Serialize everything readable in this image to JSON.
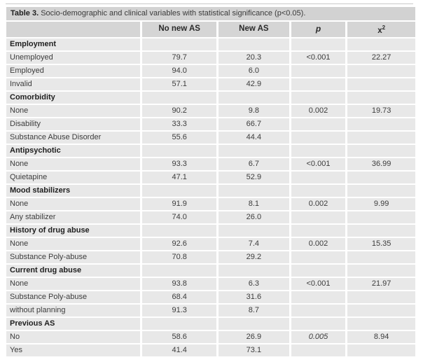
{
  "table": {
    "title_label": "Table 3.",
    "title_text": " Socio-demographic and clinical variables with statistical significance (p<0.05).",
    "columns": {
      "label": "",
      "no_new_as": "No new AS",
      "new_as": "New AS",
      "p": "p",
      "chi_base": "x",
      "chi_sup": "2"
    },
    "groups": [
      {
        "header": "Employment",
        "rows": [
          {
            "label": "Unemployed",
            "no_new": "79.7",
            "new": "20.3",
            "p": "<0.001",
            "chi": "22.27"
          },
          {
            "label": "Employed",
            "no_new": "94.0",
            "new": "6.0",
            "p": "",
            "chi": ""
          },
          {
            "label": "Invalid",
            "no_new": "57.1",
            "new": "42.9",
            "p": "",
            "chi": ""
          }
        ]
      },
      {
        "header": "Comorbidity",
        "rows": [
          {
            "label": "None",
            "no_new": "90.2",
            "new": "9.8",
            "p": "0.002",
            "chi": "19.73"
          },
          {
            "label": "Disability",
            "no_new": "33.3",
            "new": "66.7",
            "p": "",
            "chi": ""
          },
          {
            "label": "Substance Abuse Disorder",
            "no_new": "55.6",
            "new": "44.4",
            "p": "",
            "chi": ""
          }
        ]
      },
      {
        "header": "Antipsychotic",
        "rows": [
          {
            "label": "None",
            "no_new": "93.3",
            "new": "6.7",
            "p": "<0.001",
            "chi": "36.99"
          },
          {
            "label": "Quietapine",
            "no_new": "47.1",
            "new": "52.9",
            "p": "",
            "chi": ""
          }
        ]
      },
      {
        "header": "Mood stabilizers",
        "rows": [
          {
            "label": "None",
            "no_new": "91.9",
            "new": "8.1",
            "p": "0.002",
            "chi": "9.99"
          },
          {
            "label": "Any stabilizer",
            "no_new": "74.0",
            "new": "26.0",
            "p": "",
            "chi": ""
          }
        ]
      },
      {
        "header": "History of drug abuse",
        "rows": [
          {
            "label": "None",
            "no_new": "92.6",
            "new": "7.4",
            "p": "0.002",
            "chi": "15.35"
          },
          {
            "label": "Substance Poly-abuse",
            "no_new": "70.8",
            "new": "29.2",
            "p": "",
            "chi": ""
          }
        ]
      },
      {
        "header": "Current drug abuse",
        "rows": [
          {
            "label": "None",
            "no_new": "93.8",
            "new": "6.3",
            "p": "<0.001",
            "chi": "21.97"
          },
          {
            "label": "Substance Poly-abuse",
            "no_new": "68.4",
            "new": "31.6",
            "p": "",
            "chi": ""
          },
          {
            "label": "without planning",
            "no_new": "91.3",
            "new": "8.7",
            "p": "",
            "chi": ""
          }
        ]
      },
      {
        "header": "Previous AS",
        "rows": [
          {
            "label": "No",
            "no_new": "58.6",
            "new": "26.9",
            "p": "0.005",
            "p_italic": true,
            "chi": "8.94"
          },
          {
            "label": "Yes",
            "no_new": "41.4",
            "new": "73.1",
            "p": "",
            "chi": ""
          }
        ]
      }
    ]
  }
}
